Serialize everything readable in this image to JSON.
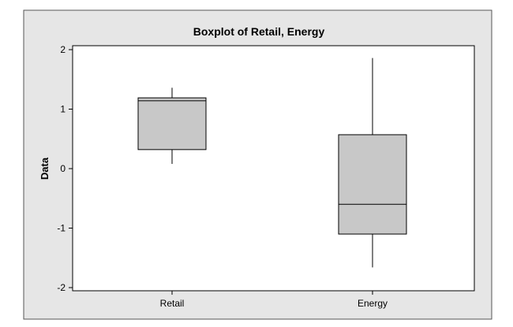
{
  "chart_data": {
    "type": "boxplot",
    "title": "Boxplot of Retail, Energy",
    "xlabel": "",
    "ylabel": "Data",
    "ylim": [
      -2.1,
      2.1
    ],
    "yticks": [
      -2,
      -1,
      0,
      1,
      2
    ],
    "ytick_labels": [
      "-2",
      "-1",
      "0",
      "1",
      "2"
    ],
    "categories": [
      "Retail",
      "Energy"
    ],
    "series": [
      {
        "category": "Retail",
        "whisker_low": 0.08,
        "q1": 0.32,
        "median": 1.14,
        "q3": 1.19,
        "whisker_high": 1.36
      },
      {
        "category": "Energy",
        "whisker_low": -1.66,
        "q1": -1.1,
        "median": -0.6,
        "q3": 0.57,
        "whisker_high": 1.86
      }
    ],
    "grid": false,
    "legend": "none",
    "colors": {
      "figure_background": "#e6e6e6",
      "plot_background": "#ffffff",
      "box_fill": "#c8c8c8",
      "stroke": "#000000"
    }
  }
}
